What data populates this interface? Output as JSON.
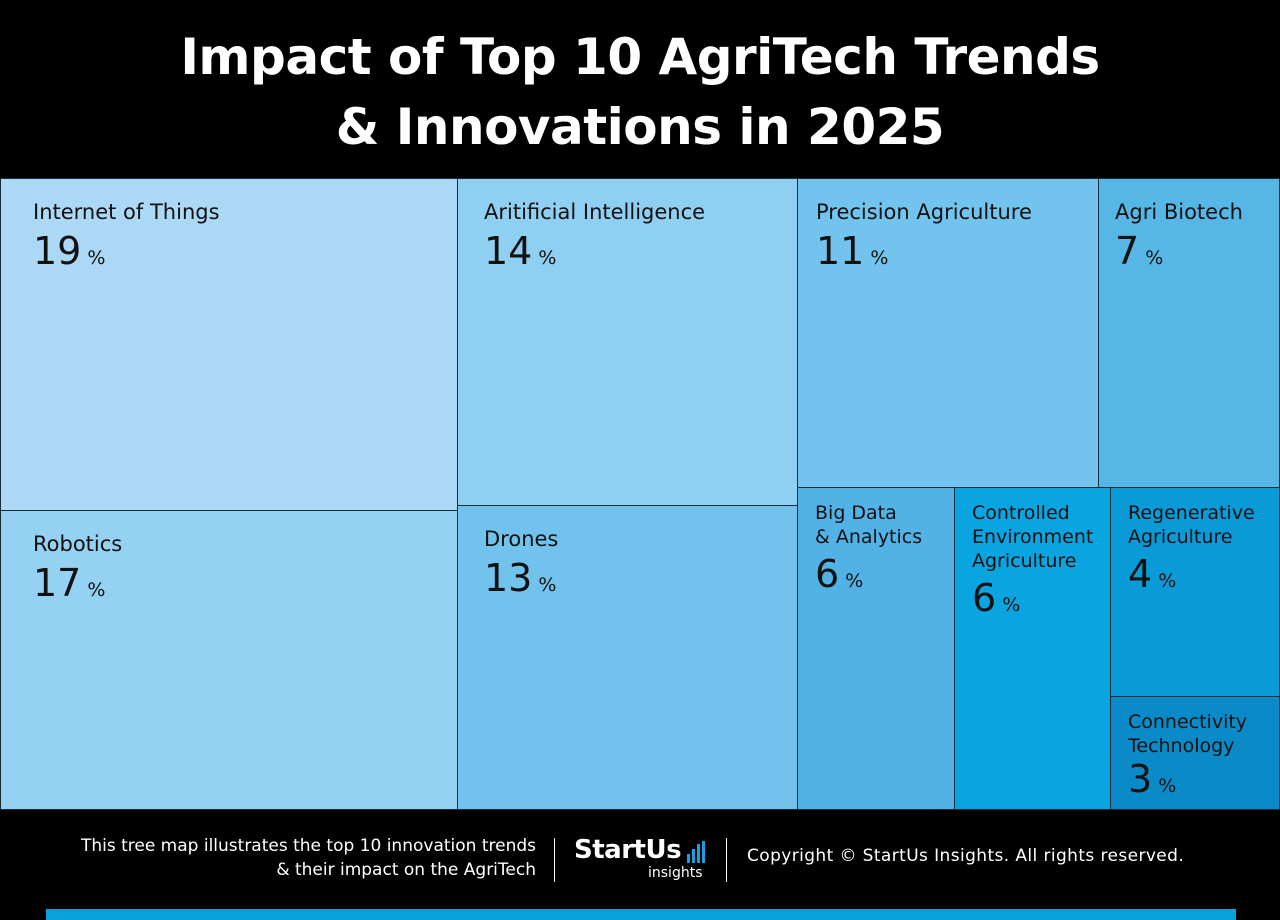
{
  "title": {
    "line1": "Impact of Top 10 AgriTech Trends",
    "line2": "& Innovations in 2025"
  },
  "chart_data": {
    "type": "treemap",
    "title": "Impact of Top 10 AgriTech Trends & Innovations in 2025",
    "unit": "%",
    "items": [
      {
        "label": "Internet of Things",
        "value": 19,
        "color": "#aad8f5"
      },
      {
        "label": "Robotics",
        "value": 17,
        "color": "#94d1f3"
      },
      {
        "label": "Aritificial Intelligence",
        "value": 14,
        "color": "#8fcff2"
      },
      {
        "label": "Drones",
        "value": 13,
        "color": "#71c3ee"
      },
      {
        "label": "Precision Agriculture",
        "value": 11,
        "color": "#72c4ee"
      },
      {
        "label": "Agri Biotech",
        "value": 7,
        "color": "#56b6e6"
      },
      {
        "label": "Big Data\n& Analytics",
        "value": 6,
        "color": "#52b2e5"
      },
      {
        "label": "Controlled\nEnvironment\nAgriculture",
        "value": 6,
        "color": "#0aa5e0"
      },
      {
        "label": "Regenerative\nAgriculture",
        "value": 4,
        "color": "#0a9ad8"
      },
      {
        "label": "Connectivity\nTechnology",
        "value": 3,
        "color": "#0a8bc8"
      }
    ]
  },
  "footer": {
    "description_line1": "This tree map illustrates the top 10 innovation trends",
    "description_line2": "& their impact on the AgriTech",
    "logo_main": "StartUs",
    "logo_sub": "insights",
    "copyright": "Copyright © StartUs Insights. All rights reserved."
  },
  "colors": {
    "background": "#000000",
    "accent_bar": "#0aa0dc",
    "logo_bars": "#1a9fe0"
  }
}
